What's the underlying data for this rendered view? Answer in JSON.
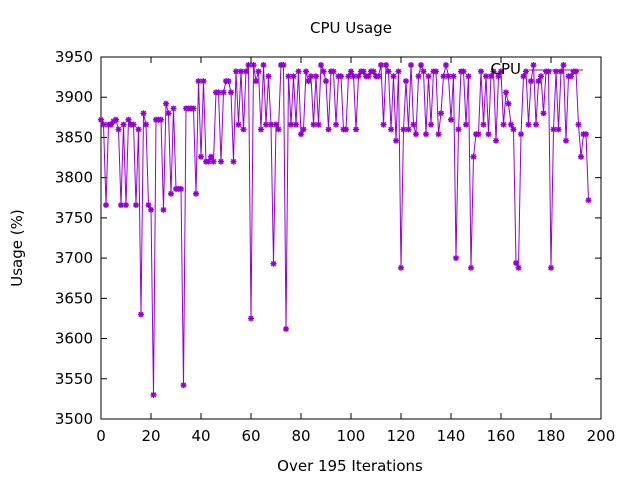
{
  "chart_data": {
    "type": "line",
    "title": "CPU Usage",
    "xlabel": "Over 195 Iterations",
    "ylabel": "Usage (%)",
    "xlim": [
      0,
      200
    ],
    "ylim": [
      3500,
      3950
    ],
    "x_ticks": [
      0,
      20,
      40,
      60,
      80,
      100,
      120,
      140,
      160,
      180,
      200
    ],
    "y_ticks": [
      3500,
      3550,
      3600,
      3650,
      3700,
      3750,
      3800,
      3850,
      3900,
      3950
    ],
    "legend_position": "top-right",
    "grid": false,
    "series": [
      {
        "name": "CPU",
        "color": "#9400d3",
        "marker": "star",
        "x_start": 0,
        "values": [
          3872,
          3866,
          3766,
          3866,
          3866,
          3870,
          3872,
          3860,
          3766,
          3866,
          3766,
          3872,
          3866,
          3866,
          3766,
          3860,
          3630,
          3880,
          3866,
          3766,
          3760,
          3530,
          3872,
          3872,
          3872,
          3760,
          3892,
          3880,
          3780,
          3886,
          3786,
          3786,
          3786,
          3542,
          3886,
          3886,
          3886,
          3886,
          3780,
          3920,
          3826,
          3920,
          3820,
          3820,
          3826,
          3820,
          3906,
          3906,
          3820,
          3906,
          3920,
          3920,
          3906,
          3820,
          3932,
          3866,
          3932,
          3860,
          3932,
          3940,
          3625,
          3940,
          3920,
          3932,
          3860,
          3940,
          3866,
          3926,
          3866,
          3693,
          3866,
          3860,
          3940,
          3940,
          3612,
          3926,
          3866,
          3926,
          3866,
          3932,
          3854,
          3860,
          3932,
          3920,
          3926,
          3866,
          3926,
          3866,
          3940,
          3932,
          3920,
          3860,
          3932,
          3932,
          3866,
          3926,
          3926,
          3860,
          3860,
          3926,
          3932,
          3926,
          3860,
          3926,
          3932,
          3932,
          3926,
          3926,
          3932,
          3932,
          3926,
          3926,
          3940,
          3866,
          3940,
          3932,
          3860,
          3926,
          3846,
          3932,
          3688,
          3860,
          3920,
          3860,
          3940,
          3866,
          3854,
          3926,
          3940,
          3932,
          3854,
          3926,
          3866,
          3932,
          3932,
          3854,
          3880,
          3926,
          3940,
          3926,
          3872,
          3926,
          3700,
          3860,
          3932,
          3932,
          3866,
          3926,
          3688,
          3826,
          3854,
          3854,
          3932,
          3866,
          3926,
          3854,
          3926,
          3932,
          3846,
          3926,
          3932,
          3866,
          3906,
          3892,
          3866,
          3860,
          3694,
          3688,
          3854,
          3926,
          3932,
          3866,
          3920,
          3940,
          3866,
          3920,
          3926,
          3880,
          3932,
          3932,
          3688,
          3860,
          3932,
          3860,
          3932,
          3940,
          3846,
          3926,
          3926,
          3932,
          3932,
          3866,
          3826,
          3854,
          3854,
          3772
        ]
      }
    ]
  }
}
